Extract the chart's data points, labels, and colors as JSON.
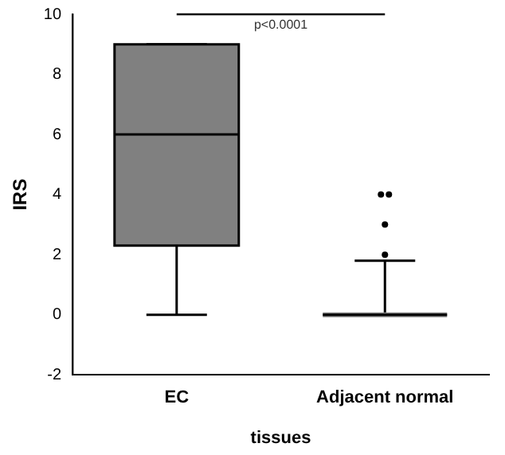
{
  "chart_data": {
    "type": "box",
    "ylabel": "IRS",
    "xlabel": "tissues",
    "categories": [
      "EC",
      "Adjacent normal"
    ],
    "boxes": [
      {
        "low": 0,
        "q1": 2.3,
        "median": 6,
        "q3": 9,
        "high": 9
      },
      {
        "low": 0,
        "q1": 0,
        "median": 0,
        "q3": 0,
        "high": 1.8,
        "outliers": [
          2,
          3,
          4,
          4
        ]
      }
    ],
    "color": "#808080",
    "ylim": [
      -2,
      10
    ],
    "yticks": [
      -2,
      0,
      2,
      4,
      6,
      8,
      10
    ],
    "grid": false,
    "legend": false,
    "annotations": [
      "p<0.0001"
    ]
  }
}
